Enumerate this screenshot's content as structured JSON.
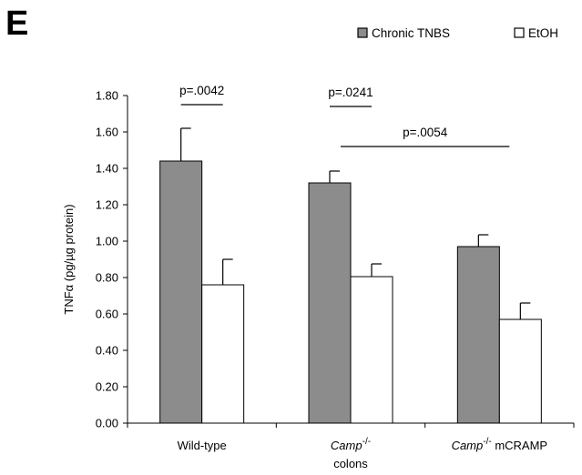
{
  "panel_label": "E",
  "chart_data": {
    "type": "bar",
    "categories": [
      {
        "main": "Wild-type",
        "sup": "",
        "suffix": ""
      },
      {
        "main": "Camp",
        "sup": "-/-",
        "suffix": ""
      },
      {
        "main": "Camp",
        "sup": "-/-",
        "suffix": " mCRAMP"
      }
    ],
    "series": [
      {
        "name": "Chronic TNBS",
        "color": "#8c8c8c",
        "values": [
          1.44,
          1.32,
          0.97
        ],
        "errors": [
          0.18,
          0.065,
          0.065
        ]
      },
      {
        "name": "EtOH",
        "color": "#ffffff",
        "values": [
          0.76,
          0.805,
          0.57
        ],
        "errors": [
          0.14,
          0.07,
          0.09
        ]
      }
    ],
    "xlabel": "colons",
    "ylabel": "TNFα (pg/µg protein)",
    "ylim": [
      0,
      1.8
    ],
    "yticks": [
      "0.00",
      "0.20",
      "0.40",
      "0.60",
      "0.80",
      "1.00",
      "1.20",
      "1.40",
      "1.60",
      "1.80"
    ],
    "legend_position": "top-right",
    "grid": false,
    "annotations": [
      {
        "text": "p=.0042",
        "from_category": 0,
        "to_category": 0,
        "level": 1.75
      },
      {
        "text": "p=.0241",
        "from_category": 1,
        "to_category": 1,
        "level": 1.74
      },
      {
        "text": "p=.0054",
        "from_category": 1,
        "to_category": 2,
        "level": 1.52
      }
    ]
  }
}
